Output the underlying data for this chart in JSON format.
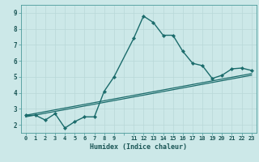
{
  "xlabel": "Humidex (Indice chaleur)",
  "bg_color": "#cce8e8",
  "grid_color": "#b8d8d8",
  "line_color": "#1a6b6b",
  "xlim": [
    -0.5,
    23.5
  ],
  "ylim": [
    1.5,
    9.5
  ],
  "yticks": [
    2,
    3,
    4,
    5,
    6,
    7,
    8,
    9
  ],
  "series1_x": [
    0,
    1,
    2,
    3,
    4,
    5,
    6,
    7,
    8,
    9,
    11,
    12,
    13,
    14,
    15,
    16,
    17,
    18,
    19,
    20,
    21,
    22,
    23
  ],
  "series1_y": [
    2.6,
    2.6,
    2.3,
    2.7,
    1.8,
    2.2,
    2.5,
    2.5,
    4.1,
    5.0,
    7.4,
    8.8,
    8.4,
    7.6,
    7.6,
    6.6,
    5.85,
    5.7,
    4.9,
    5.1,
    5.5,
    5.55,
    5.4
  ],
  "series2_x": [
    0,
    23
  ],
  "series2_y": [
    2.5,
    5.1
  ],
  "series3_x": [
    0,
    23
  ],
  "series3_y": [
    2.6,
    5.2
  ]
}
